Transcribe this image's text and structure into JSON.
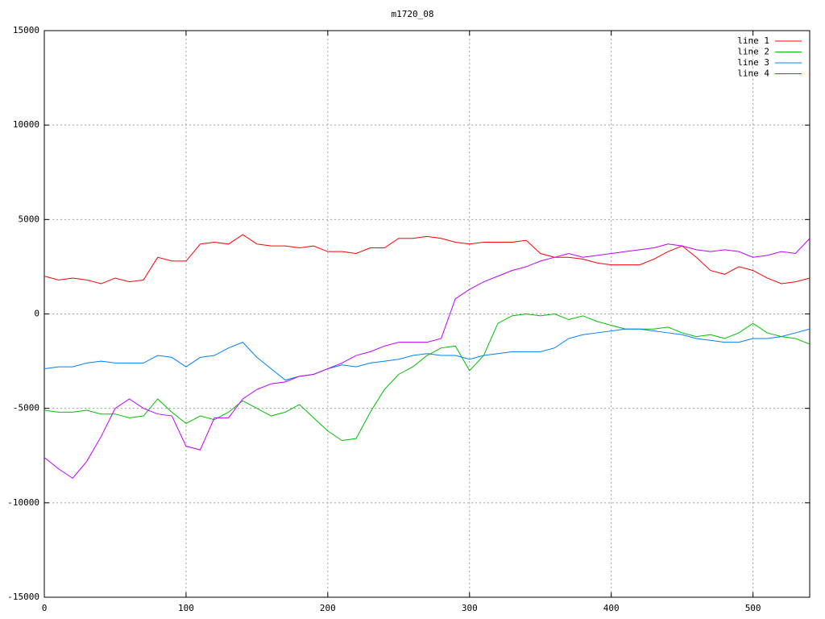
{
  "chart_data": {
    "type": "line",
    "title": "m1720_08",
    "x": [
      0,
      10,
      20,
      30,
      40,
      50,
      60,
      70,
      80,
      90,
      100,
      110,
      120,
      130,
      140,
      150,
      160,
      170,
      180,
      190,
      200,
      210,
      220,
      230,
      240,
      250,
      260,
      270,
      280,
      290,
      300,
      310,
      320,
      330,
      340,
      350,
      360,
      370,
      380,
      390,
      400,
      410,
      420,
      430,
      440,
      450,
      460,
      470,
      480,
      490,
      500,
      510,
      520,
      530,
      540
    ],
    "series": [
      {
        "name": "line 1",
        "color": "#ff0000",
        "values": [
          2000,
          1800,
          1900,
          1800,
          1600,
          1900,
          1700,
          1800,
          3000,
          2800,
          2800,
          3700,
          3800,
          3700,
          4200,
          3700,
          3600,
          3600,
          3500,
          3600,
          3300,
          3300,
          3200,
          3500,
          3500,
          4000,
          4000,
          4100,
          4000,
          3800,
          3700,
          3800,
          3800,
          3800,
          3900,
          3200,
          3000,
          3000,
          2900,
          2700,
          2600,
          2600,
          2600,
          2900,
          3300,
          3600,
          3000,
          2300,
          2100,
          2500,
          2300,
          1900,
          1600,
          1700,
          1900
        ]
      },
      {
        "name": "line 2",
        "color": "#00c000",
        "values": [
          -5100,
          -5200,
          -5200,
          -5100,
          -5300,
          -5300,
          -5500,
          -5400,
          -4500,
          -5200,
          -5800,
          -5400,
          -5600,
          -5200,
          -4600,
          -5000,
          -5400,
          -5200,
          -4800,
          -5500,
          -6200,
          -6700,
          -6600,
          -5200,
          -4000,
          -3200,
          -2800,
          -2200,
          -1800,
          -1700,
          -3000,
          -2200,
          -500,
          -100,
          0,
          -100,
          0,
          -300,
          -100,
          -400,
          -600,
          -800,
          -800,
          -800,
          -700,
          -1000,
          -1200,
          -1100,
          -1300,
          -1000,
          -500,
          -1000,
          -1200,
          -1300,
          -1600
        ]
      },
      {
        "name": "line 3",
        "color": "#0080ff",
        "values": [
          -2900,
          -2800,
          -2800,
          -2600,
          -2500,
          -2600,
          -2600,
          -2600,
          -2200,
          -2300,
          -2800,
          -2300,
          -2200,
          -1800,
          -1500,
          -2300,
          -2900,
          -3500,
          -3300,
          -3200,
          -2900,
          -2700,
          -2800,
          -2600,
          -2500,
          -2400,
          -2200,
          -2100,
          -2200,
          -2200,
          -2400,
          -2200,
          -2100,
          -2000,
          -2000,
          -2000,
          -1800,
          -1300,
          -1100,
          -1000,
          -900,
          -800,
          -800,
          -900,
          -1000,
          -1100,
          -1300,
          -1400,
          -1500,
          -1500,
          -1300,
          -1300,
          -1200,
          -1000,
          -800
        ]
      },
      {
        "name": "line 4",
        "color": "#c000ff",
        "values": [
          -7600,
          -8200,
          -8700,
          -7800,
          -6500,
          -5000,
          -4500,
          -5000,
          -5300,
          -5400,
          -7000,
          -7200,
          -5500,
          -5500,
          -4500,
          -4000,
          -3700,
          -3600,
          -3300,
          -3200,
          -2900,
          -2600,
          -2200,
          -2000,
          -1700,
          -1500,
          -1500,
          -1500,
          -1300,
          800,
          1300,
          1700,
          2000,
          2300,
          2500,
          2800,
          3000,
          3200,
          3000,
          3100,
          3200,
          3300,
          3400,
          3500,
          3700,
          3600,
          3400,
          3300,
          3400,
          3300,
          3000,
          3100,
          3300,
          3200,
          4000
        ]
      }
    ],
    "xlim": [
      0,
      540
    ],
    "xticks": [
      0,
      100,
      200,
      300,
      400,
      500
    ],
    "ylim": [
      -15000,
      15000
    ],
    "yticks": [
      -15000,
      -10000,
      -5000,
      0,
      5000,
      10000,
      15000
    ],
    "grid": true,
    "legend": "top-right"
  }
}
